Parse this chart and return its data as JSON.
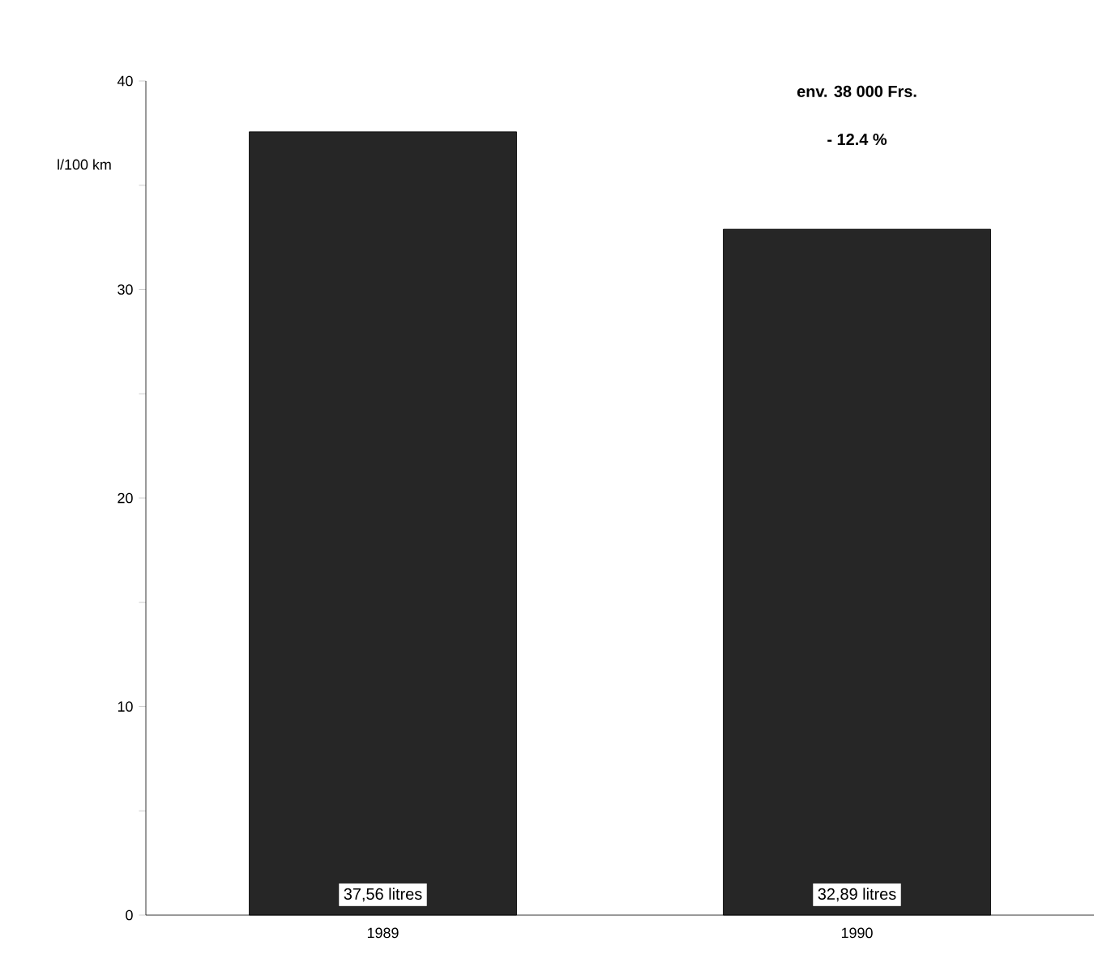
{
  "chart_data": {
    "type": "bar",
    "ylabel": "l/100 km",
    "categories": [
      "1989",
      "1990"
    ],
    "values": [
      37.56,
      32.89
    ],
    "value_labels": [
      "37,56 litres",
      "32,89 litres"
    ],
    "color": "#262626",
    "ylim": [
      0,
      40
    ],
    "yticks": [
      0,
      {
        "value": 5,
        "label": null
      },
      10,
      {
        "value": 15,
        "label": null
      },
      20,
      {
        "value": 25,
        "label": null
      },
      30,
      {
        "value": 35,
        "label": null
      },
      40
    ],
    "annotations": [
      "env. 38 000 Frs.",
      "- 12.4 %"
    ],
    "grid": false
  }
}
